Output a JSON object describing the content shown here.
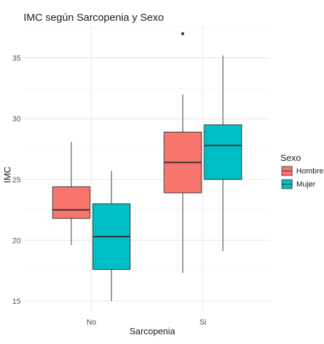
{
  "chart_data": {
    "type": "boxplot",
    "title": "IMC según Sarcopenia y Sexo",
    "xlabel": "Sarcopenia",
    "ylabel": "IMC",
    "categories": [
      "No",
      "Si"
    ],
    "ylim": [
      14.2,
      37.6
    ],
    "yticks": [
      15,
      20,
      25,
      30,
      35
    ],
    "grid": true,
    "legend": {
      "title": "Sexo",
      "position": "right",
      "entries": [
        {
          "name": "Hombre",
          "color": "#F8766D"
        },
        {
          "name": "Mujer",
          "color": "#00BFC4"
        }
      ]
    },
    "series": [
      {
        "name": "Hombre",
        "color": "#F8766D",
        "boxes": [
          {
            "category": "No",
            "whisker_low": 19.6,
            "q1": 21.8,
            "median": 22.5,
            "q3": 24.4,
            "whisker_high": 28.1,
            "outliers": []
          },
          {
            "category": "Si",
            "whisker_low": 17.3,
            "q1": 23.9,
            "median": 26.4,
            "q3": 28.9,
            "whisker_high": 32.0,
            "outliers": [
              37.0
            ]
          }
        ]
      },
      {
        "name": "Mujer",
        "color": "#00BFC4",
        "boxes": [
          {
            "category": "No",
            "whisker_low": 15.0,
            "q1": 17.6,
            "median": 20.3,
            "q3": 23.0,
            "whisker_high": 25.7,
            "outliers": []
          },
          {
            "category": "Si",
            "whisker_low": 19.1,
            "q1": 25.0,
            "median": 27.8,
            "q3": 29.5,
            "whisker_high": 35.2,
            "outliers": []
          }
        ]
      }
    ]
  }
}
